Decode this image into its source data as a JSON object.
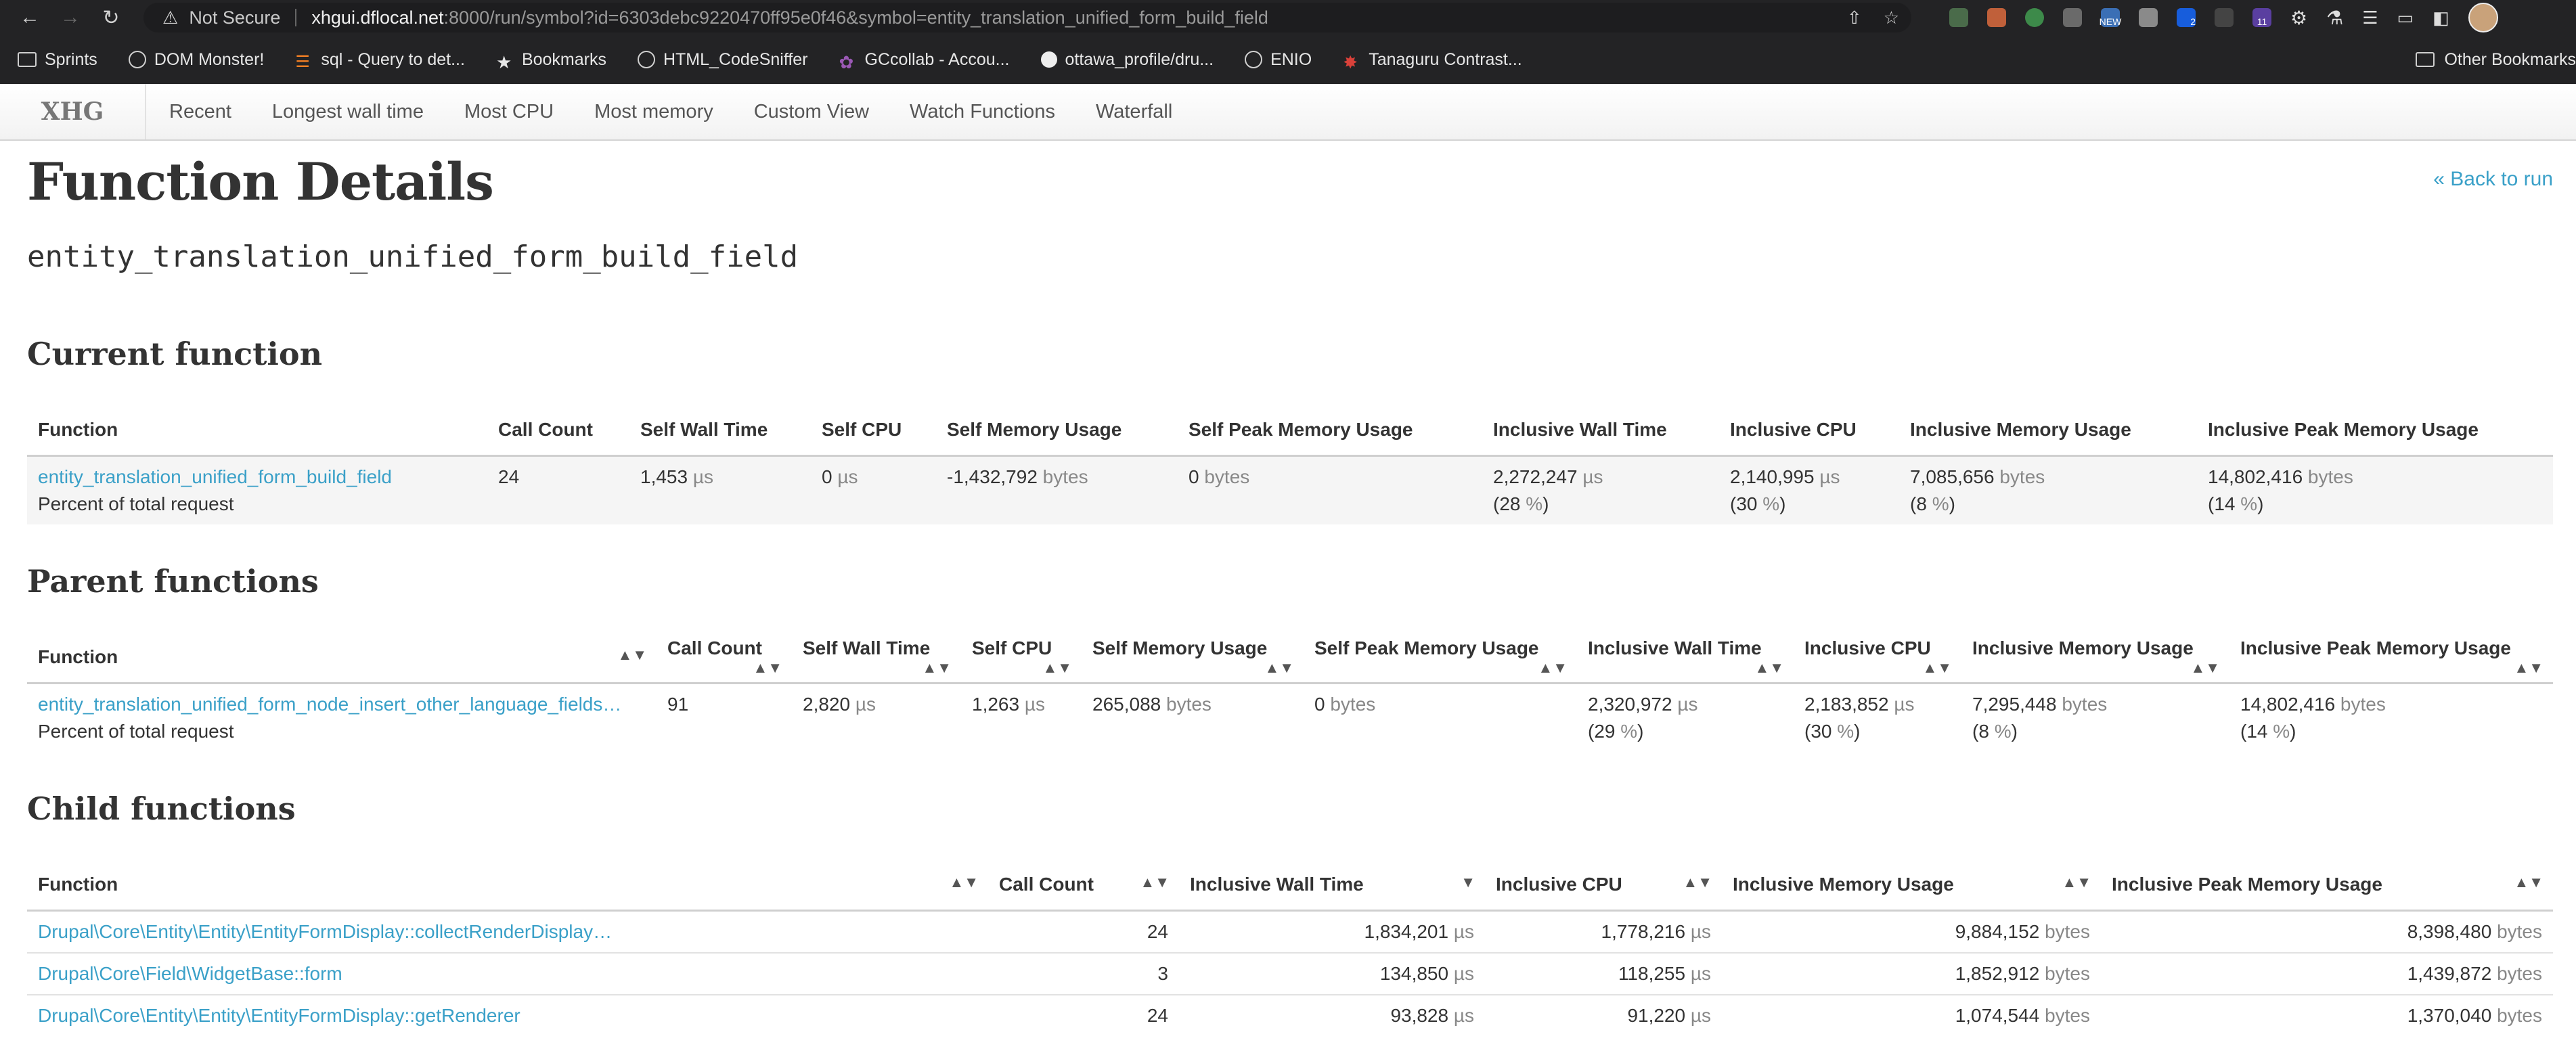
{
  "browser": {
    "security_label": "Not Secure",
    "url_host": "xhgui.dflocal.net",
    "url_rest": ":8000/run/symbol?id=6303debc9220470ff95e0f46&symbol=entity_translation_unified_form_build_field",
    "bookmarks": [
      {
        "label": "Sprints",
        "icon": "folder-icon"
      },
      {
        "label": "DOM Monster!",
        "icon": "globe-icon"
      },
      {
        "label": "sql - Query to det...",
        "icon": "stackoverflow-icon"
      },
      {
        "label": "Bookmarks",
        "icon": "star-icon"
      },
      {
        "label": "HTML_CodeSniffer",
        "icon": "globe-icon"
      },
      {
        "label": "GCcollab - Accou...",
        "icon": "gccollab-icon"
      },
      {
        "label": "ottawa_profile/dru...",
        "icon": "github-icon"
      },
      {
        "label": "ENIO",
        "icon": "globe-icon"
      },
      {
        "label": "Tanaguru Contrast...",
        "icon": "tanaguru-icon"
      }
    ],
    "other_bookmarks": "Other Bookmarks",
    "extension_badges": {
      "new": "NEW",
      "two": "2",
      "eleven": "11"
    }
  },
  "app": {
    "brand": "XHG",
    "nav": [
      "Recent",
      "Longest wall time",
      "Most CPU",
      "Most memory",
      "Custom View",
      "Watch Functions",
      "Waterfall"
    ]
  },
  "page": {
    "title": "Function Details",
    "back_link": "« Back to run",
    "symbol": "entity_translation_unified_form_build_field"
  },
  "current": {
    "title": "Current function",
    "headers": [
      "Function",
      "Call Count",
      "Self Wall Time",
      "Self CPU",
      "Self Memory Usage",
      "Self Peak Memory Usage",
      "Inclusive Wall Time",
      "Inclusive CPU",
      "Inclusive Memory Usage",
      "Inclusive Peak Memory Usage"
    ],
    "row": {
      "name": "entity_translation_unified_form_build_field",
      "percent_label": "Percent of total request",
      "call_count": "24",
      "self_wall": "1,453",
      "self_cpu": "0",
      "self_mem": "-1,432,792",
      "self_peak": "0",
      "incl_wall": "2,272,247",
      "incl_wall_pct": "28",
      "incl_cpu": "2,140,995",
      "incl_cpu_pct": "30",
      "incl_mem": "7,085,656",
      "incl_mem_pct": "8",
      "incl_peak": "14,802,416",
      "incl_peak_pct": "14"
    }
  },
  "parents": {
    "title": "Parent functions",
    "headers": [
      "Function",
      "Call Count",
      "Self Wall Time",
      "Self CPU",
      "Self Memory Usage",
      "Self Peak Memory Usage",
      "Inclusive Wall Time",
      "Inclusive CPU",
      "Inclusive Memory Usage",
      "Inclusive Peak Memory Usage"
    ],
    "row": {
      "name": "entity_translation_unified_form_node_insert_other_language_fields…",
      "percent_label": "Percent of total request",
      "call_count": "91",
      "self_wall": "2,820",
      "self_cpu": "1,263",
      "self_mem": "265,088",
      "self_peak": "0",
      "incl_wall": "2,320,972",
      "incl_wall_pct": "29",
      "incl_cpu": "2,183,852",
      "incl_cpu_pct": "30",
      "incl_mem": "7,295,448",
      "incl_mem_pct": "8",
      "incl_peak": "14,802,416",
      "incl_peak_pct": "14"
    }
  },
  "children": {
    "title": "Child functions",
    "headers": [
      "Function",
      "Call Count",
      "Inclusive Wall Time",
      "Inclusive CPU",
      "Inclusive Memory Usage",
      "Inclusive Peak Memory Usage"
    ],
    "rows": [
      {
        "name": "Drupal\\Core\\Entity\\Entity\\EntityFormDisplay::collectRenderDisplay…",
        "call_count": "24",
        "incl_wall": "1,834,201",
        "incl_cpu": "1,778,216",
        "incl_mem": "9,884,152",
        "incl_peak": "8,398,480"
      },
      {
        "name": "Drupal\\Core\\Field\\WidgetBase::form",
        "call_count": "3",
        "incl_wall": "134,850",
        "incl_cpu": "118,255",
        "incl_mem": "1,852,912",
        "incl_peak": "1,439,872"
      },
      {
        "name": "Drupal\\Core\\Entity\\Entity\\EntityFormDisplay::getRenderer",
        "call_count": "24",
        "incl_wall": "93,828",
        "incl_cpu": "91,220",
        "incl_mem": "1,074,544",
        "incl_peak": "1,370,040"
      }
    ]
  },
  "units": {
    "time": "µs",
    "bytes": "bytes",
    "percent": "%"
  },
  "colors": {
    "link": "#3aa0c8",
    "chrome": "#232325"
  }
}
